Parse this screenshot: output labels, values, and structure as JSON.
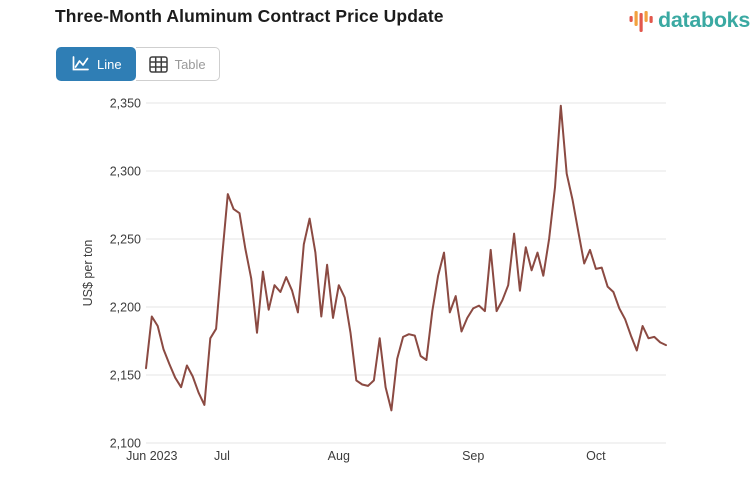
{
  "header": {
    "title": "Three-Month Aluminum Contract Price Update",
    "logo_text": "databoks"
  },
  "toolbar": {
    "line_label": "Line",
    "table_label": "Table"
  },
  "colors": {
    "accent": "#2f7eb5",
    "line": "#8b4a42",
    "grid": "#e4e4e4",
    "text_dark": "#1c1c1c",
    "text_axis": "#3c3c3c",
    "text_muted": "#9a9a9a",
    "logo_teal": "#3aa9a2",
    "logo_red": "#e2574c",
    "logo_orange": "#f2a13e"
  },
  "chart_data": {
    "type": "line",
    "title": "Three-Month Aluminum Contract Price Update",
    "series_name": "Three-month aluminum contract price",
    "xlabel": "",
    "ylabel": "US$ per ton",
    "ylim": [
      2100,
      2350
    ],
    "grid": true,
    "legend": false,
    "x_range_note": "daily values, mid-June 2023 through mid-October 2023",
    "yticks": {
      "values": [
        2350,
        2300,
        2250,
        2200,
        2150,
        2100
      ],
      "labels": [
        "2,350",
        "2,300",
        "2,250",
        "2,200",
        "2,150",
        "2,100"
      ]
    },
    "xticks": {
      "labels": [
        "Jun 2023",
        "Jul",
        "Aug",
        "Sep",
        "Oct"
      ],
      "indices": [
        0,
        13,
        33,
        56,
        77
      ]
    },
    "values": [
      2155,
      2193,
      2186,
      2169,
      2158,
      2148,
      2141,
      2157,
      2149,
      2137,
      2128,
      2177,
      2184,
      2236,
      2283,
      2272,
      2269,
      2243,
      2221,
      2181,
      2226,
      2198,
      2216,
      2211,
      2222,
      2212,
      2196,
      2246,
      2265,
      2240,
      2193,
      2231,
      2192,
      2216,
      2207,
      2181,
      2146,
      2143,
      2142,
      2146,
      2177,
      2141,
      2124,
      2162,
      2178,
      2180,
      2179,
      2164,
      2161,
      2197,
      2223,
      2240,
      2196,
      2208,
      2182,
      2192,
      2199,
      2201,
      2197,
      2242,
      2197,
      2205,
      2216,
      2254,
      2212,
      2244,
      2227,
      2240,
      2223,
      2250,
      2288,
      2348,
      2298,
      2279,
      2255,
      2232,
      2242,
      2228,
      2229,
      2215,
      2211,
      2199,
      2191,
      2179,
      2168,
      2186,
      2177,
      2178,
      2174,
      2172
    ]
  }
}
